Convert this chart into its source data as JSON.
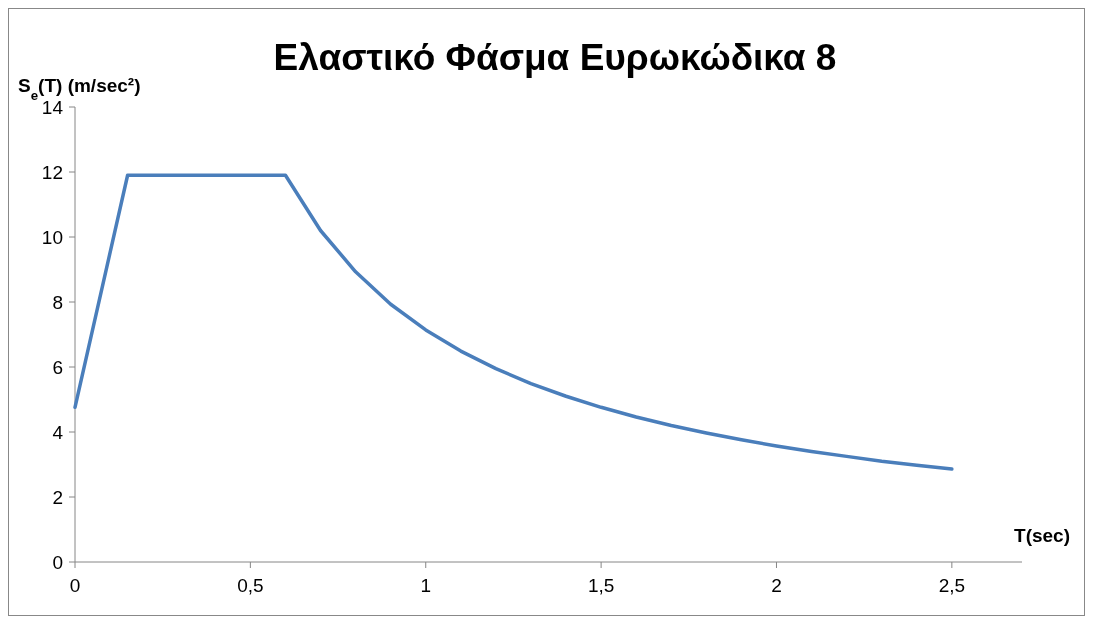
{
  "chart_data": {
    "type": "line",
    "title": "Ελαστικό Φάσμα Ευρωκώδικα 8",
    "xlabel": "T(sec)",
    "ylabel": "S$_{e}$(T) (m/sec²)",
    "x": [
      0,
      0.15,
      0.6,
      0.7,
      0.8,
      0.9,
      1.0,
      1.1,
      1.2,
      1.3,
      1.4,
      1.5,
      1.6,
      1.7,
      1.8,
      1.9,
      2.0,
      2.1,
      2.2,
      2.3,
      2.4,
      2.5
    ],
    "series": [
      {
        "color": "#4a7ebb",
        "values": [
          4.76,
          11.9,
          11.9,
          10.2,
          8.93,
          7.93,
          7.14,
          6.49,
          5.95,
          5.49,
          5.1,
          4.76,
          4.46,
          4.2,
          3.97,
          3.76,
          3.57,
          3.4,
          3.25,
          3.1,
          2.98,
          2.86
        ]
      }
    ],
    "xlim": [
      0,
      2.7
    ],
    "xticks": [
      0,
      {
        "value": 0.5,
        "label": "0,5"
      },
      1,
      {
        "value": 1.5,
        "label": "1,5"
      },
      2,
      {
        "value": 2.5,
        "label": "2,5"
      }
    ],
    "ylim": [
      0,
      14
    ],
    "yticks": [
      0,
      2,
      4,
      6,
      8,
      10,
      12,
      14
    ],
    "grid": false,
    "marker": "none",
    "line_style": "solid"
  }
}
